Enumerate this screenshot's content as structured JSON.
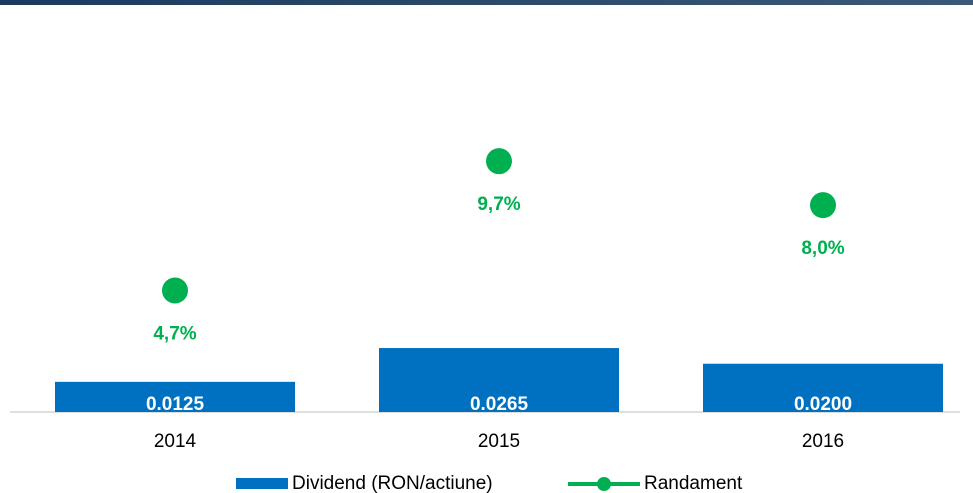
{
  "chart_data": {
    "type": "bar",
    "categories": [
      "2014",
      "2015",
      "2016"
    ],
    "series": [
      {
        "name": "Dividend (RON/actiune)",
        "color": "#0070c0",
        "values": [
          0.0125,
          0.0265,
          0.02
        ],
        "value_labels": [
          "0.0125",
          "0.0265",
          "0.0200"
        ]
      },
      {
        "name": "Randament",
        "color": "#00b050",
        "type": "scatter",
        "axis": "y2",
        "values": [
          4.7,
          9.7,
          8.0
        ],
        "value_labels": [
          "4,7%",
          "9,7%",
          "8,0%"
        ]
      }
    ],
    "ylim": [
      0,
      0.15
    ],
    "y2lim": [
      0,
      14
    ],
    "legend": "bottom"
  }
}
